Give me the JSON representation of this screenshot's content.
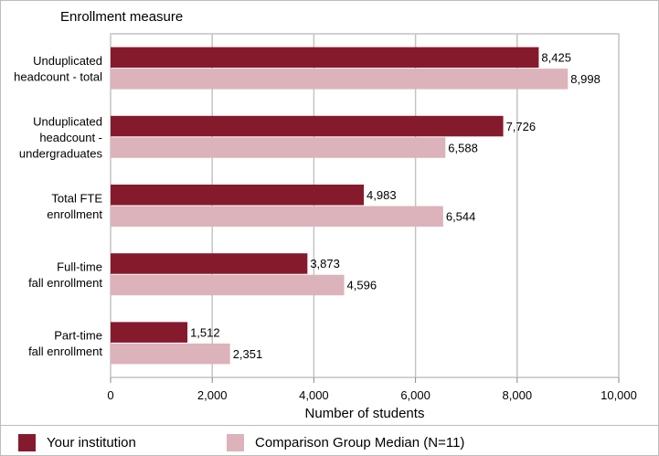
{
  "chart_data": {
    "type": "bar",
    "orientation": "horizontal",
    "header": "Enrollment measure",
    "xlabel": "Number of students",
    "xlim": [
      0,
      10000
    ],
    "xticks": [
      "0",
      "2,000",
      "4,000",
      "6,000",
      "8,000",
      "10,000"
    ],
    "categories": [
      [
        "Unduplicated",
        "headcount - total"
      ],
      [
        "Unduplicated",
        "headcount -",
        "undergraduates"
      ],
      [
        "Total FTE",
        "enrollment"
      ],
      [
        "Full-time",
        "fall enrollment"
      ],
      [
        "Part-time",
        "fall enrollment"
      ]
    ],
    "series": [
      {
        "name": "Your institution",
        "color": "#861a2d",
        "values": [
          8425,
          7726,
          4983,
          3873,
          1512
        ],
        "labels": [
          "8,425",
          "7,726",
          "4,983",
          "3,873",
          "1,512"
        ]
      },
      {
        "name": "Comparison Group Median (N=11)",
        "color": "#dcb3ba",
        "values": [
          8998,
          6588,
          6544,
          4596,
          2351
        ],
        "labels": [
          "8,998",
          "6,588",
          "6,544",
          "4,596",
          "2,351"
        ]
      }
    ],
    "grid": true,
    "legend_position": "bottom"
  }
}
